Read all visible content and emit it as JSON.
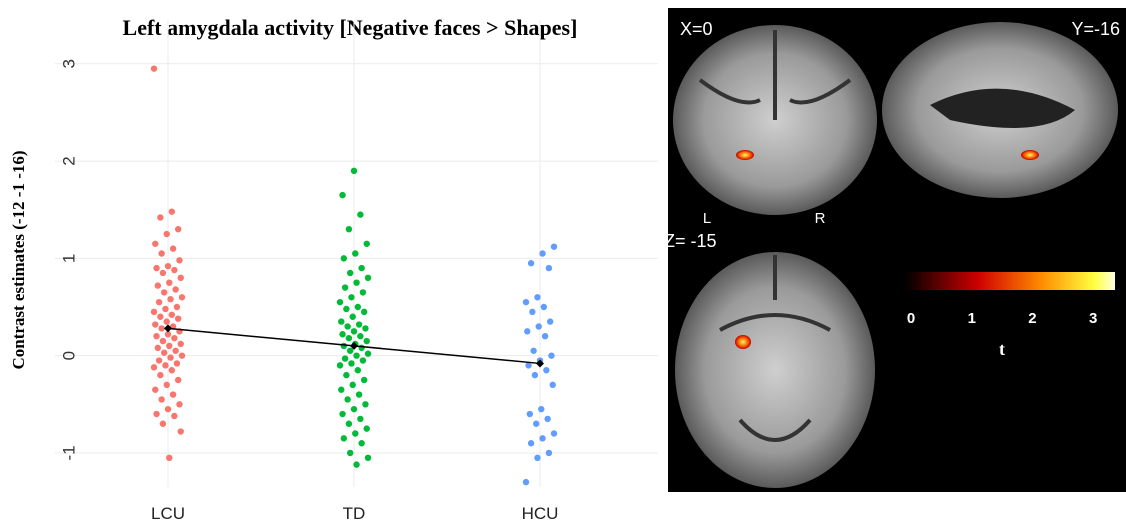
{
  "chart_data": {
    "type": "strip",
    "title": "Left amygdala activity [Negative faces  > Shapes]",
    "y_label": "Contrast estimates (-12 -1 -16)",
    "categories": [
      "LCU",
      "TD",
      "HCU"
    ],
    "ylim": [
      -1.35,
      3.45
    ],
    "yticks": [
      -1,
      0,
      1,
      2,
      3
    ],
    "grid": true,
    "series": [
      {
        "color": "#F8766D",
        "values": [
          2.95,
          1.48,
          1.42,
          1.3,
          1.25,
          1.15,
          1.1,
          1.05,
          0.98,
          0.92,
          0.9,
          0.88,
          0.85,
          0.8,
          0.75,
          0.72,
          0.68,
          0.65,
          0.6,
          0.58,
          0.55,
          0.5,
          0.48,
          0.45,
          0.42,
          0.4,
          0.38,
          0.35,
          0.32,
          0.3,
          0.28,
          0.25,
          0.22,
          0.2,
          0.18,
          0.15,
          0.12,
          0.1,
          0.08,
          0.05,
          0.03,
          0.0,
          -0.02,
          -0.05,
          -0.08,
          -0.1,
          -0.12,
          -0.15,
          -0.2,
          -0.25,
          -0.3,
          -0.35,
          -0.4,
          -0.45,
          -0.5,
          -0.55,
          -0.6,
          -0.62,
          -0.7,
          -0.78,
          -1.05
        ]
      },
      {
        "color": "#00BA38",
        "values": [
          1.9,
          1.65,
          1.45,
          1.3,
          1.15,
          1.05,
          1.0,
          0.9,
          0.85,
          0.8,
          0.75,
          0.7,
          0.65,
          0.6,
          0.55,
          0.5,
          0.48,
          0.45,
          0.4,
          0.35,
          0.32,
          0.3,
          0.28,
          0.25,
          0.22,
          0.2,
          0.18,
          0.15,
          0.12,
          0.1,
          0.08,
          0.05,
          0.02,
          0.0,
          -0.03,
          -0.05,
          -0.08,
          -0.1,
          -0.15,
          -0.2,
          -0.25,
          -0.3,
          -0.35,
          -0.4,
          -0.45,
          -0.5,
          -0.55,
          -0.6,
          -0.65,
          -0.7,
          -0.75,
          -0.8,
          -0.85,
          -0.9,
          -1.0,
          -1.05,
          -1.12
        ]
      },
      {
        "color": "#619CFF",
        "values": [
          1.12,
          1.05,
          0.95,
          0.9,
          0.6,
          0.55,
          0.5,
          0.45,
          0.35,
          0.3,
          0.25,
          0.2,
          0.05,
          0.0,
          -0.05,
          -0.1,
          -0.15,
          -0.2,
          -0.3,
          -0.55,
          -0.6,
          -0.65,
          -0.7,
          -0.8,
          -0.85,
          -0.9,
          -1.0,
          -1.05,
          -1.3
        ]
      }
    ],
    "means": {
      "color": "#000000",
      "values": [
        0.28,
        0.1,
        -0.08
      ]
    }
  },
  "brain_panel": {
    "labels": {
      "coronal": "X=0",
      "sagittal": "Y=-16",
      "axial": "Z= -15",
      "left": "L",
      "right": "R"
    },
    "colorbar": {
      "label": "t",
      "lim": [
        -0.1,
        3.36
      ],
      "ticks": [
        0,
        1,
        2,
        3
      ]
    }
  }
}
